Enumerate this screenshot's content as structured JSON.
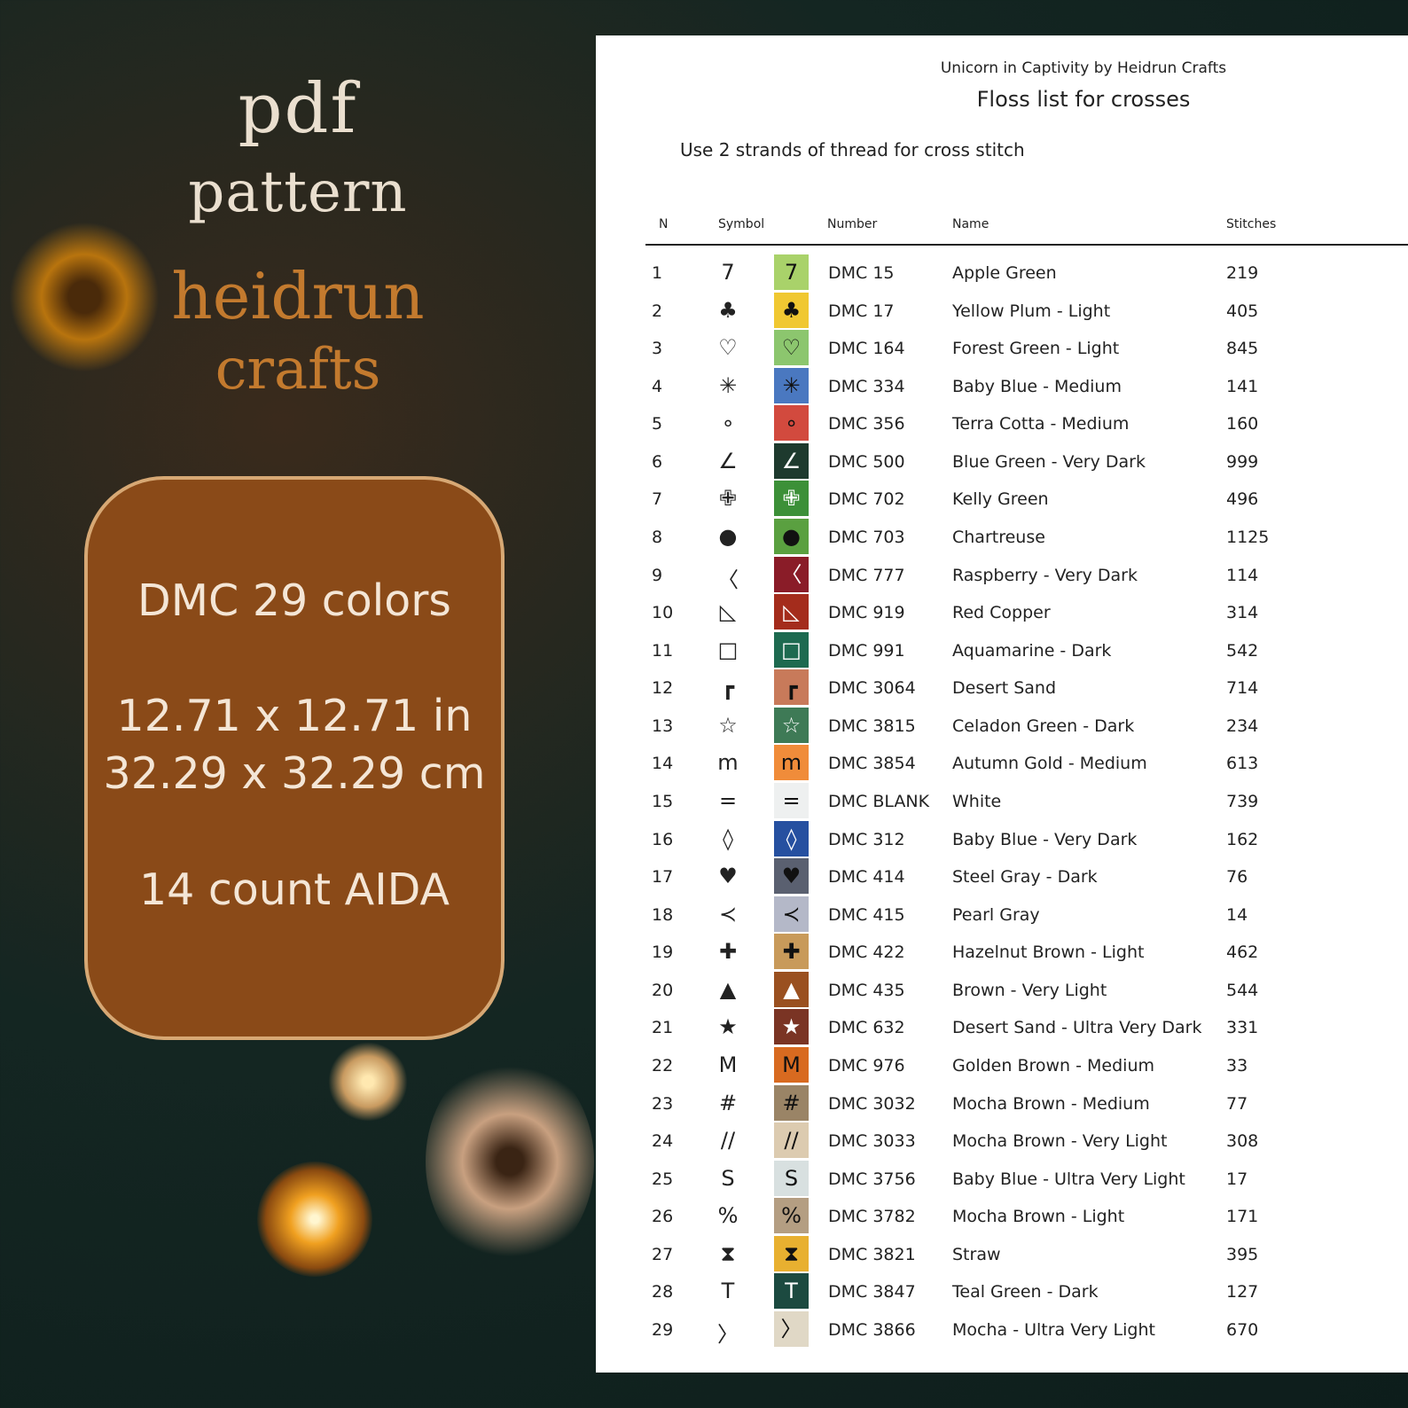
{
  "promo": {
    "line1": "pdf",
    "line2": "pattern",
    "brand1": "heidrun",
    "brand2": "crafts",
    "colors": "DMC 29 colors",
    "size_in": "12.71 x 12.71 in",
    "size_cm": "32.29 x 32.29 cm",
    "fabric": "14 count AIDA"
  },
  "document": {
    "subtitle": "Unicorn in Captivity by Heidrun Crafts",
    "title": "Floss list for crosses",
    "instruction": "Use 2 strands of thread for cross stitch",
    "columns": {
      "n": "N",
      "symbol": "Symbol",
      "number": "Number",
      "name": "Name",
      "stitches": "Stitches"
    },
    "rows": [
      {
        "n": "1",
        "symbol": "7",
        "number": "DMC 15",
        "name": "Apple Green",
        "stitches": "219",
        "color": "#a9d26a",
        "ink": "#111"
      },
      {
        "n": "2",
        "symbol": "♣",
        "number": "DMC 17",
        "name": "Yellow Plum - Light",
        "stitches": "405",
        "color": "#f0c832",
        "ink": "#111"
      },
      {
        "n": "3",
        "symbol": "♡",
        "number": "DMC 164",
        "name": "Forest Green - Light",
        "stitches": "845",
        "color": "#8cc66e",
        "ink": "#111"
      },
      {
        "n": "4",
        "symbol": "✳",
        "number": "DMC 334",
        "name": "Baby Blue - Medium",
        "stitches": "141",
        "color": "#4a78c0",
        "ink": "#111"
      },
      {
        "n": "5",
        "symbol": "∘",
        "number": "DMC 356",
        "name": "Terra Cotta - Medium",
        "stitches": "160",
        "color": "#d24a3e",
        "ink": "#111"
      },
      {
        "n": "6",
        "symbol": "∠",
        "number": "DMC 500",
        "name": "Blue Green - Very Dark",
        "stitches": "999",
        "color": "#1e3a2e",
        "ink": "#fff"
      },
      {
        "n": "7",
        "symbol": "✙",
        "number": "DMC 702",
        "name": "Kelly Green",
        "stitches": "496",
        "color": "#3c9038",
        "ink": "#fff"
      },
      {
        "n": "8",
        "symbol": "●",
        "number": "DMC 703",
        "name": "Chartreuse",
        "stitches": "1125",
        "color": "#5aa040",
        "ink": "#111"
      },
      {
        "n": "9",
        "symbol": "〈",
        "number": "DMC 777",
        "name": "Raspberry - Very Dark",
        "stitches": "114",
        "color": "#8a1c28",
        "ink": "#fff"
      },
      {
        "n": "10",
        "symbol": "◺",
        "number": "DMC 919",
        "name": "Red Copper",
        "stitches": "314",
        "color": "#a42c1c",
        "ink": "#fff"
      },
      {
        "n": "11",
        "symbol": "□",
        "number": "DMC 991",
        "name": "Aquamarine - Dark",
        "stitches": "542",
        "color": "#1e6a50",
        "ink": "#fff"
      },
      {
        "n": "12",
        "symbol": "┏",
        "number": "DMC 3064",
        "name": "Desert Sand",
        "stitches": "714",
        "color": "#c87a5a",
        "ink": "#111"
      },
      {
        "n": "13",
        "symbol": "☆",
        "number": "DMC 3815",
        "name": "Celadon Green - Dark",
        "stitches": "234",
        "color": "#3e7a56",
        "ink": "#fff"
      },
      {
        "n": "14",
        "symbol": "m",
        "number": "DMC 3854",
        "name": "Autumn Gold - Medium",
        "stitches": "613",
        "color": "#f08c3a",
        "ink": "#111"
      },
      {
        "n": "15",
        "symbol": "=",
        "number": "DMC BLANK",
        "name": "White",
        "stitches": "739",
        "color": "#eef0f0",
        "ink": "#111"
      },
      {
        "n": "16",
        "symbol": "◊",
        "number": "DMC 312",
        "name": "Baby Blue - Very Dark",
        "stitches": "162",
        "color": "#2650a0",
        "ink": "#fff"
      },
      {
        "n": "17",
        "symbol": "♥",
        "number": "DMC 414",
        "name": "Steel Gray - Dark",
        "stitches": "76",
        "color": "#5a6070",
        "ink": "#111"
      },
      {
        "n": "18",
        "symbol": "≺",
        "number": "DMC 415",
        "name": "Pearl Gray",
        "stitches": "14",
        "color": "#b4b8c8",
        "ink": "#111"
      },
      {
        "n": "19",
        "symbol": "✚",
        "number": "DMC 422",
        "name": "Hazelnut Brown - Light",
        "stitches": "462",
        "color": "#c89a5a",
        "ink": "#111"
      },
      {
        "n": "20",
        "symbol": "▲",
        "number": "DMC 435",
        "name": "Brown - Very Light",
        "stitches": "544",
        "color": "#9a5020",
        "ink": "#fff"
      },
      {
        "n": "21",
        "symbol": "★",
        "number": "DMC 632",
        "name": "Desert Sand - Ultra Very Dark",
        "stitches": "331",
        "color": "#7a3424",
        "ink": "#fff"
      },
      {
        "n": "22",
        "symbol": "M",
        "number": "DMC 976",
        "name": "Golden Brown - Medium",
        "stitches": "33",
        "color": "#d86a20",
        "ink": "#111"
      },
      {
        "n": "23",
        "symbol": "#",
        "number": "DMC 3032",
        "name": "Mocha Brown - Medium",
        "stitches": "77",
        "color": "#9a8466",
        "ink": "#111"
      },
      {
        "n": "24",
        "symbol": "//",
        "number": "DMC 3033",
        "name": "Mocha Brown - Very Light",
        "stitches": "308",
        "color": "#dccbb0",
        "ink": "#111"
      },
      {
        "n": "25",
        "symbol": "S",
        "number": "DMC 3756",
        "name": "Baby Blue - Ultra Very Light",
        "stitches": "17",
        "color": "#d8e0e0",
        "ink": "#111"
      },
      {
        "n": "26",
        "symbol": "%",
        "number": "DMC 3782",
        "name": "Mocha Brown - Light",
        "stitches": "171",
        "color": "#b49e82",
        "ink": "#111"
      },
      {
        "n": "27",
        "symbol": "⧗",
        "number": "DMC 3821",
        "name": "Straw",
        "stitches": "395",
        "color": "#e8b030",
        "ink": "#111"
      },
      {
        "n": "28",
        "symbol": "T",
        "number": "DMC 3847",
        "name": "Teal Green - Dark",
        "stitches": "127",
        "color": "#1c4a40",
        "ink": "#fff"
      },
      {
        "n": "29",
        "symbol": "〉",
        "number": "DMC 3866",
        "name": "Mocha - Ultra Very Light",
        "stitches": "670",
        "color": "#e0d8c6",
        "ink": "#111"
      }
    ]
  }
}
